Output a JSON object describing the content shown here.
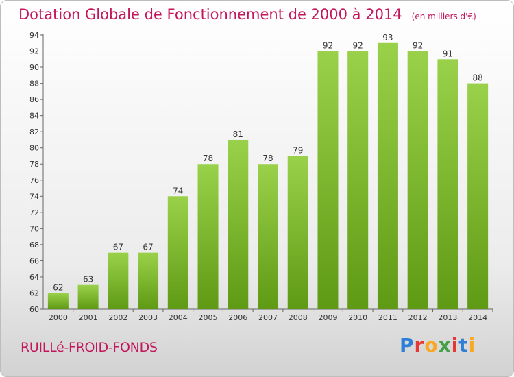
{
  "title": "Dotation Globale de Fonctionnement de 2000 à 2014",
  "unit": "(en milliers d'€)",
  "commune": "RUILLé-FROID-FONDS",
  "logo": {
    "text": "Proxiti",
    "colors": [
      "#2e7fd8",
      "#e53935",
      "#f9a825",
      "#43a047",
      "#e53935",
      "#2e7fd8",
      "#f9a825"
    ]
  },
  "chart_data": {
    "type": "bar",
    "categories": [
      "2000",
      "2001",
      "2002",
      "2003",
      "2004",
      "2005",
      "2006",
      "2007",
      "2008",
      "2009",
      "2010",
      "2011",
      "2012",
      "2013",
      "2014"
    ],
    "values": [
      62,
      63,
      67,
      67,
      74,
      78,
      81,
      78,
      79,
      92,
      92,
      93,
      92,
      91,
      88
    ],
    "ylim": [
      60,
      94
    ],
    "yticks": [
      60,
      62,
      64,
      66,
      68,
      70,
      72,
      74,
      76,
      78,
      80,
      82,
      84,
      86,
      88,
      90,
      92,
      94
    ],
    "grid": false,
    "bar_color": "#7dc52e"
  }
}
